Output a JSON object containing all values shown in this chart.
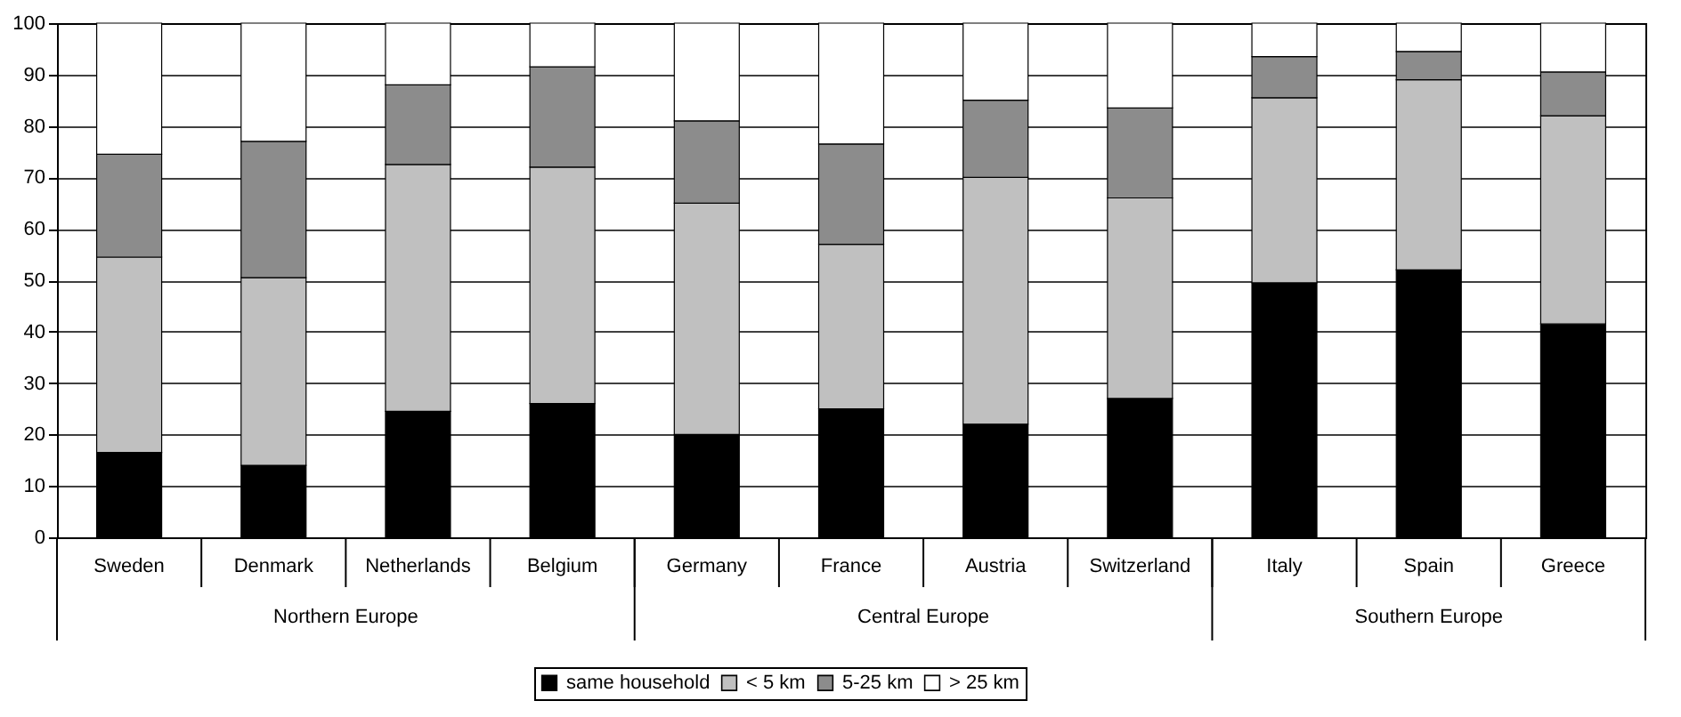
{
  "chart_data": {
    "type": "bar",
    "stacked": true,
    "categories": [
      "Sweden",
      "Denmark",
      "Netherlands",
      "Belgium",
      "Germany",
      "France",
      "Austria",
      "Switzerland",
      "Italy",
      "Spain",
      "Greece"
    ],
    "series": [
      {
        "name": "same household",
        "color": "#000000",
        "values": [
          16.5,
          14,
          24.5,
          26,
          20,
          25,
          22,
          27,
          49.5,
          52,
          41.5
        ]
      },
      {
        "name": "< 5 km",
        "color": "#c0c0c0",
        "values": [
          38,
          36.5,
          48,
          46,
          45,
          32,
          48,
          39,
          36,
          37,
          40.5
        ]
      },
      {
        "name": "5-25 km",
        "color": "#8c8c8c",
        "values": [
          20,
          26.5,
          15.5,
          19.5,
          16,
          19.5,
          15,
          17.5,
          8,
          5.5,
          8.5
        ]
      },
      {
        "name": "> 25 km",
        "color": "#ffffff",
        "values": [
          25.5,
          23,
          12,
          8.5,
          19,
          23.5,
          15,
          16.5,
          6.5,
          5.5,
          9.5
        ]
      }
    ],
    "annotations": [
      "Northern Europe",
      "Central Europe",
      "Southern Europe"
    ],
    "ylim": [
      0,
      100
    ],
    "yticks": [
      0,
      10,
      20,
      30,
      40,
      50,
      60,
      70,
      80,
      90,
      100
    ],
    "grid": "y",
    "legend": "bottom"
  }
}
